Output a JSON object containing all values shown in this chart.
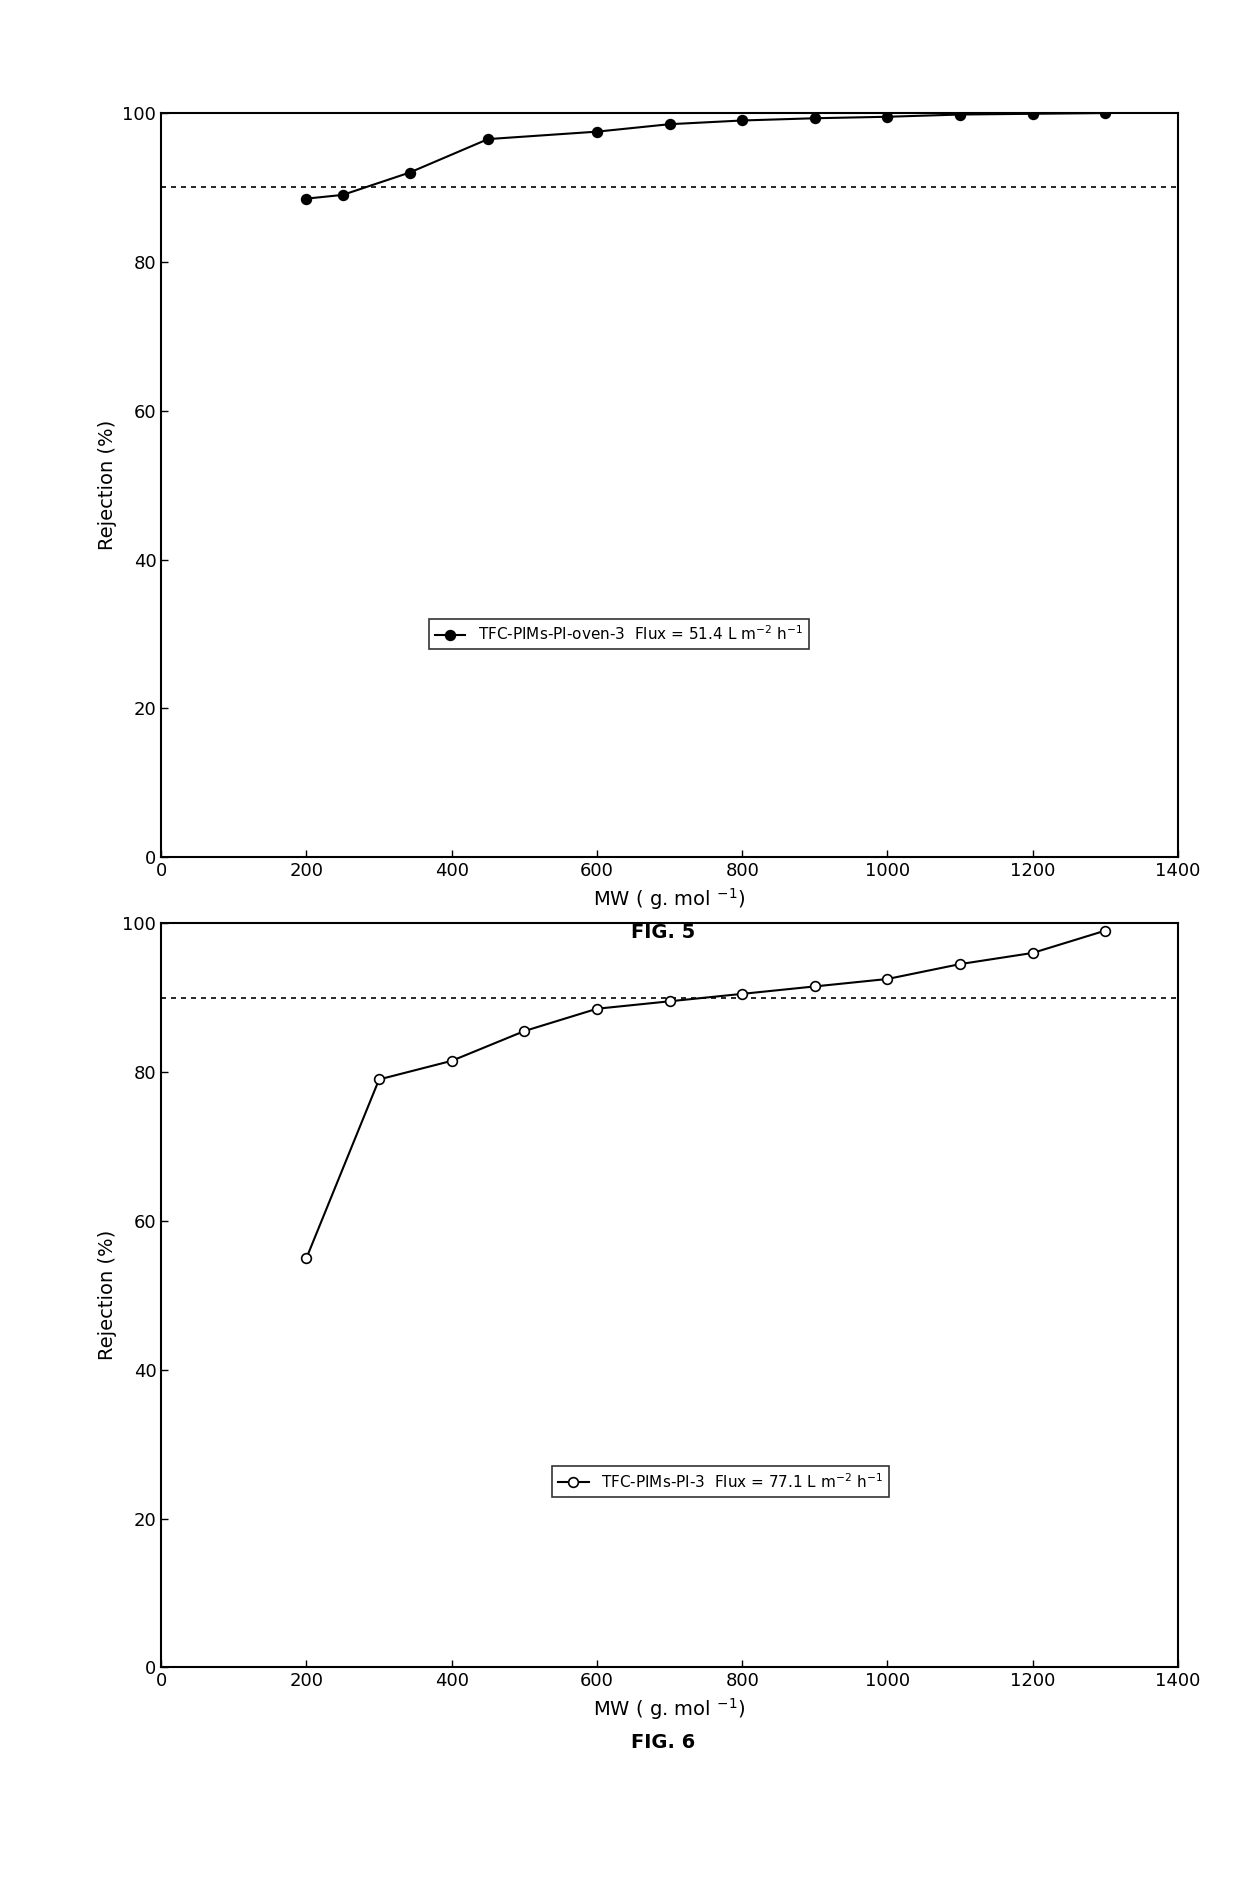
{
  "fig5": {
    "x": [
      200,
      250,
      342,
      450,
      600,
      700,
      800,
      900,
      1000,
      1100,
      1200,
      1300
    ],
    "y": [
      88.5,
      89.0,
      92.0,
      96.5,
      97.5,
      98.5,
      99.0,
      99.3,
      99.5,
      99.8,
      99.9,
      100.0
    ],
    "marker_fill": "black",
    "legend_text": "TFC-PIMs-PI-oven-3  Flux = 51.4 L m$^{-2}$ h$^{-1}$",
    "fig_label": "FIG. 5"
  },
  "fig6": {
    "x": [
      200,
      300,
      400,
      500,
      600,
      700,
      800,
      900,
      1000,
      1100,
      1200,
      1300
    ],
    "y": [
      55.0,
      79.0,
      81.5,
      85.5,
      88.5,
      89.5,
      90.5,
      91.5,
      92.5,
      94.5,
      96.0,
      99.0
    ],
    "marker_fill": "white",
    "legend_text": "TFC-PIMs-PI-3  Flux = 77.1 L m$^{-2}$ h$^{-1}$",
    "fig_label": "FIG. 6"
  },
  "xlim": [
    0,
    1400
  ],
  "ylim": [
    0,
    100
  ],
  "yticks": [
    0,
    20,
    40,
    60,
    80,
    100
  ],
  "xticks": [
    0,
    200,
    400,
    600,
    800,
    1000,
    1200,
    1400
  ],
  "ylabel": "Rejection (%)",
  "hline_y": 90,
  "background_color": "#ffffff",
  "fontsize_ticks": 13,
  "fontsize_label": 14,
  "fontsize_figlabel": 13,
  "fontsize_legend": 11
}
